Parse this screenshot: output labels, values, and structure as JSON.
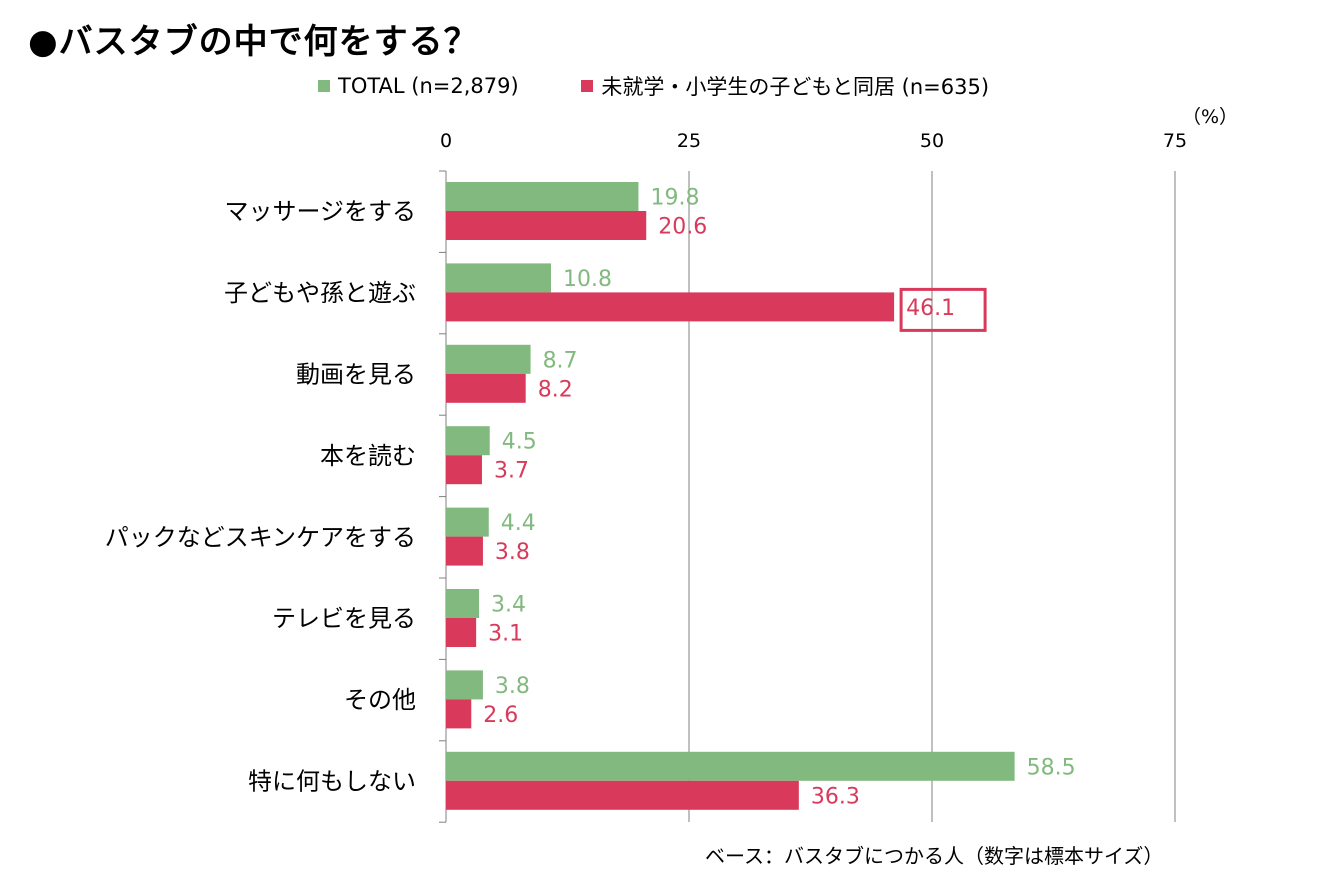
{
  "title": "●バスタブの中で何をする？",
  "unit_label": "（%）",
  "footnote": "ベース：バスタブにつかる人（数字は標本サイズ）",
  "colors": {
    "total": "#82b97f",
    "young_children": "#d93a5b",
    "axis": "#808080",
    "highlight_box": "#d93a5b"
  },
  "chart_data": {
    "type": "bar",
    "orientation": "horizontal",
    "categories": [
      "マッサージをする",
      "子どもや孫と遊ぶ",
      "動画を見る",
      "本を読む",
      "パックなどスキンケアをする",
      "テレビを見る",
      "その他",
      "特に何もしない"
    ],
    "series": [
      {
        "name": "TOTAL (n=2,879)",
        "values": [
          19.8,
          10.8,
          8.7,
          4.5,
          4.4,
          3.4,
          3.8,
          58.5
        ]
      },
      {
        "name": "未就学・小学生の子どもと同居 (n=635)",
        "values": [
          20.6,
          46.1,
          8.2,
          3.7,
          3.8,
          3.1,
          2.6,
          36.3
        ]
      }
    ],
    "xlim": [
      0,
      75
    ],
    "xticks": [
      "0",
      "25",
      "50",
      "75"
    ],
    "grid": true,
    "legend_position": "top",
    "highlighted": {
      "series": 1,
      "category": 1
    }
  }
}
